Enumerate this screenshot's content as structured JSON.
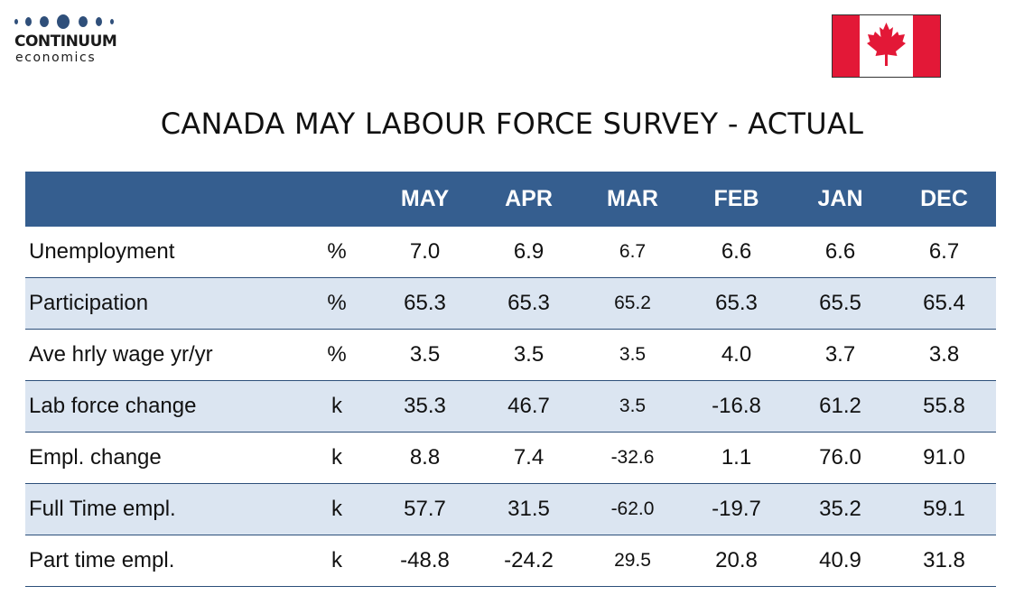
{
  "logo": {
    "name": "CONTINUUM",
    "sub": "economics",
    "dot_color": "#2f4f7a"
  },
  "flag": {
    "icon": "canada-flag-icon",
    "red": "#e31837",
    "white": "#ffffff"
  },
  "title": "CANADA MAY LABOUR FORCE SURVEY - ACTUAL",
  "table": {
    "header_color": "#355e8f",
    "alt_row_color": "#dbe5f1",
    "columns": [
      "",
      "",
      "MAY",
      "APR",
      "MAR",
      "FEB",
      "JAN",
      "DEC"
    ],
    "rows": [
      {
        "label": "Unemployment",
        "unit": "%",
        "values": [
          "7.0",
          "6.9",
          "6.7",
          "6.6",
          "6.6",
          "6.7"
        ]
      },
      {
        "label": "Participation",
        "unit": "%",
        "values": [
          "65.3",
          "65.3",
          "65.2",
          "65.3",
          "65.5",
          "65.4"
        ]
      },
      {
        "label": "Ave hrly wage yr/yr",
        "unit": "%",
        "values": [
          "3.5",
          "3.5",
          "3.5",
          "4.0",
          "3.7",
          "3.8"
        ]
      },
      {
        "label": "Lab force change",
        "unit": "k",
        "values": [
          "35.3",
          "46.7",
          "3.5",
          "-16.8",
          "61.2",
          "55.8"
        ]
      },
      {
        "label": "Empl. change",
        "unit": "k",
        "values": [
          "8.8",
          "7.4",
          "-32.6",
          "1.1",
          "76.0",
          "91.0"
        ]
      },
      {
        "label": "Full Time empl.",
        "unit": "k",
        "values": [
          "57.7",
          "31.5",
          "-62.0",
          "-19.7",
          "35.2",
          "59.1"
        ]
      },
      {
        "label": "Part time empl.",
        "unit": "k",
        "values": [
          "-48.8",
          "-24.2",
          "29.5",
          "20.8",
          "40.9",
          "31.8"
        ]
      }
    ]
  }
}
